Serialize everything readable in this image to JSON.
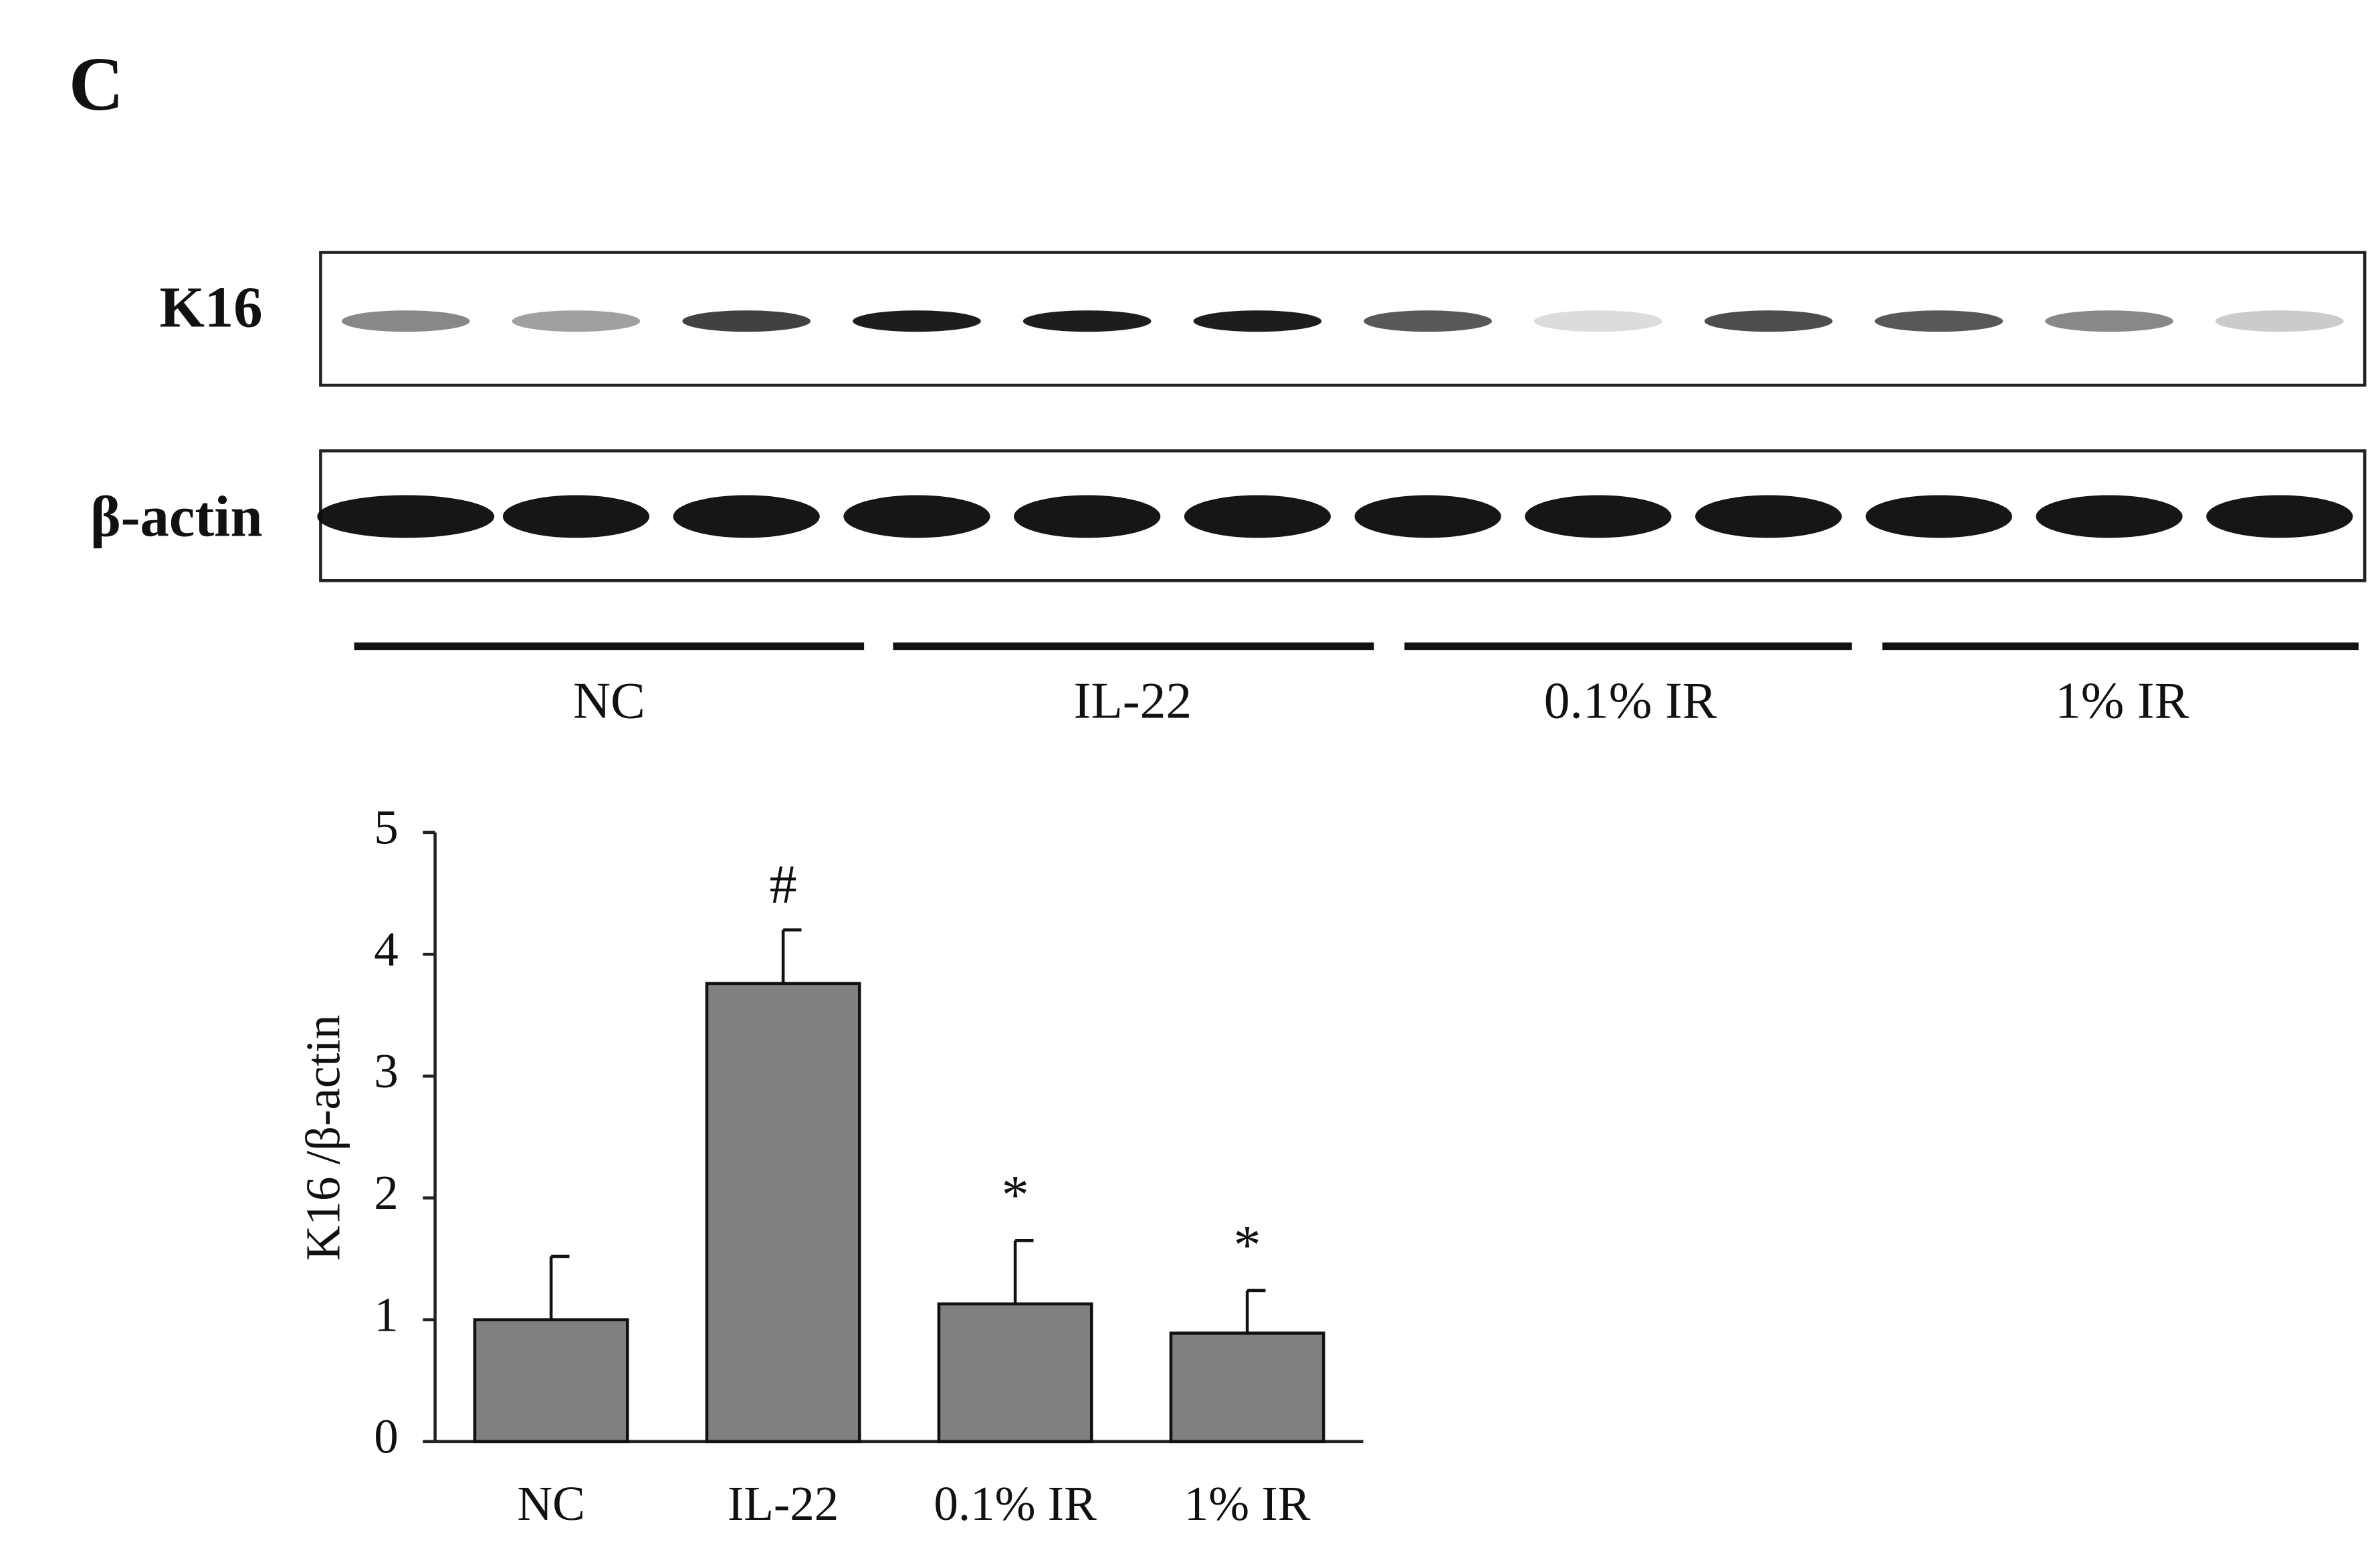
{
  "panel_label": "C",
  "blot": {
    "rows": [
      "K16",
      "β-actin"
    ],
    "groups": [
      "NC",
      "IL-22",
      "0.1% IR",
      "1% IR"
    ]
  },
  "chart_data": {
    "type": "bar",
    "ylabel": "K16 /β-actin",
    "categories": [
      "NC",
      "IL-22",
      "0.1% IR",
      "1% IR"
    ],
    "values": [
      1.0,
      3.76,
      1.13,
      0.89
    ],
    "errors": [
      0.52,
      0.44,
      0.52,
      0.35
    ],
    "annotations": [
      null,
      "#",
      "*",
      "*"
    ],
    "color": "#808080",
    "ylim": [
      0,
      5
    ],
    "yticks": [
      0,
      1,
      2,
      3,
      4,
      5
    ]
  }
}
